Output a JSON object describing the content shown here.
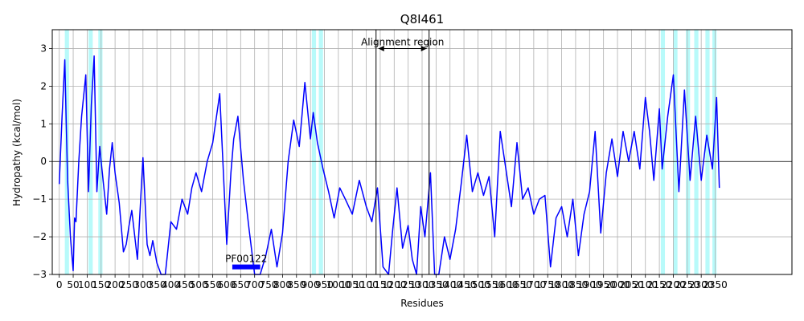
{
  "chart_data": {
    "type": "line",
    "title": "Q8I461",
    "xlabel": "Residues",
    "ylabel": "Hydropathy (kcal/mol)",
    "xlim": [
      -25,
      2625
    ],
    "ylim": [
      -3,
      3.5
    ],
    "x_ticks": [
      0,
      50,
      100,
      150,
      200,
      250,
      300,
      350,
      400,
      450,
      500,
      550,
      600,
      650,
      700,
      750,
      800,
      850,
      900,
      950,
      1000,
      1050,
      1100,
      1150,
      1200,
      1250,
      1300,
      1350,
      1400,
      1450,
      1500,
      1550,
      1600,
      1650,
      1700,
      1750,
      1800,
      1850,
      1900,
      1950,
      2000,
      2050,
      2100,
      2150,
      2200,
      2250,
      2300,
      2350
    ],
    "x_tick_labels": [
      "0",
      "50",
      "100",
      "150",
      "200",
      "250",
      "300",
      "350",
      "400",
      "450",
      "500",
      "550",
      "600",
      "650",
      "700",
      "750",
      "800",
      "850",
      "900",
      "950",
      "1000",
      "1050",
      "1100",
      "1150",
      "1200",
      "1250",
      "1300",
      "1350",
      "1400",
      "1450",
      "1500",
      "1550",
      "1600",
      "1650",
      "1700",
      "1750",
      "1800",
      "1850",
      "1900",
      "1950",
      "2000",
      "2050",
      "2100",
      "2150",
      "2200",
      "2250",
      "2300",
      "2350"
    ],
    "y_ticks": [
      -3,
      -2,
      -1,
      0,
      1,
      2,
      3
    ],
    "y_tick_labels": [
      "−3",
      "−2",
      "−1",
      "0",
      "1",
      "2",
      "3"
    ],
    "grid": true,
    "series": [
      {
        "color": "#0000ff",
        "x": [
          0,
          10,
          20,
          25,
          30,
          40,
          50,
          55,
          60,
          70,
          80,
          95,
          105,
          115,
          125,
          135,
          145,
          150,
          160,
          170,
          180,
          190,
          200,
          215,
          230,
          240,
          250,
          260,
          280,
          300,
          315,
          325,
          335,
          350,
          365,
          380,
          400,
          420,
          440,
          460,
          475,
          490,
          510,
          530,
          550,
          575,
          600,
          615,
          625,
          640,
          660,
          680,
          700,
          720,
          740,
          760,
          780,
          800,
          820,
          840,
          860,
          880,
          900,
          910,
          925,
          945,
          965,
          985,
          1005,
          1025,
          1050,
          1075,
          1100,
          1120,
          1140,
          1160,
          1180,
          1195,
          1210,
          1230,
          1250,
          1265,
          1280,
          1295,
          1310,
          1330,
          1345,
          1360,
          1380,
          1400,
          1420,
          1440,
          1460,
          1480,
          1500,
          1520,
          1540,
          1560,
          1580,
          1600,
          1620,
          1640,
          1660,
          1680,
          1700,
          1720,
          1740,
          1760,
          1780,
          1800,
          1820,
          1840,
          1860,
          1880,
          1900,
          1920,
          1940,
          1960,
          1980,
          2000,
          2020,
          2040,
          2060,
          2080,
          2100,
          2115,
          2130,
          2150,
          2160,
          2180,
          2200,
          2220,
          2240,
          2260,
          2280,
          2300,
          2320,
          2340,
          2355,
          2365
        ],
        "y": [
          -0.6,
          1.2,
          2.7,
          1.0,
          -0.5,
          -2.0,
          -2.9,
          -1.5,
          -1.6,
          0.0,
          1.2,
          2.3,
          -0.8,
          1.5,
          2.8,
          -0.8,
          0.4,
          0.0,
          -0.7,
          -1.4,
          -0.2,
          0.5,
          -0.3,
          -1.1,
          -2.4,
          -2.2,
          -1.7,
          -1.3,
          -2.6,
          0.1,
          -2.2,
          -2.5,
          -2.1,
          -2.7,
          -3.0,
          -3.0,
          -1.6,
          -1.8,
          -1.0,
          -1.4,
          -0.7,
          -0.3,
          -0.8,
          0.0,
          0.5,
          1.8,
          -2.2,
          -0.3,
          0.6,
          1.2,
          -0.5,
          -1.8,
          -3.0,
          -3.0,
          -2.5,
          -1.8,
          -2.8,
          -1.9,
          0.0,
          1.1,
          0.4,
          2.1,
          0.6,
          1.3,
          0.5,
          -0.2,
          -0.8,
          -1.5,
          -0.7,
          -1.0,
          -1.4,
          -0.5,
          -1.2,
          -1.6,
          -0.7,
          -2.8,
          -3.0,
          -1.8,
          -0.7,
          -2.3,
          -1.7,
          -2.6,
          -3.0,
          -1.2,
          -2.0,
          -0.3,
          -3.0,
          -3.0,
          -2.0,
          -2.6,
          -1.8,
          -0.6,
          0.7,
          -0.8,
          -0.3,
          -0.9,
          -0.4,
          -2.0,
          0.8,
          -0.2,
          -1.2,
          0.5,
          -1.0,
          -0.7,
          -1.4,
          -1.0,
          -0.9,
          -2.8,
          -1.5,
          -1.2,
          -2.0,
          -1.0,
          -2.5,
          -1.4,
          -0.8,
          0.8,
          -1.9,
          -0.3,
          0.6,
          -0.4,
          0.8,
          0.0,
          0.8,
          -0.2,
          1.7,
          0.8,
          -0.5,
          1.4,
          -0.2,
          1.2,
          2.3,
          -0.8,
          1.9,
          -0.5,
          1.2,
          -0.5,
          0.7,
          -0.2,
          1.7,
          -0.7
        ]
      }
    ],
    "hydrophobic_regions": [
      [
        20,
        35
      ],
      [
        105,
        120
      ],
      [
        140,
        155
      ],
      [
        905,
        920
      ],
      [
        930,
        945
      ],
      [
        2155,
        2170
      ],
      [
        2200,
        2215
      ],
      [
        2245,
        2260
      ],
      [
        2275,
        2290
      ],
      [
        2315,
        2330
      ],
      [
        2340,
        2355
      ]
    ],
    "alignment_region": {
      "label": "Alignment region",
      "start": 1135,
      "end": 1325
    },
    "domain": {
      "label": "PF00122",
      "start": 620,
      "end": 720,
      "y": -2.8
    }
  }
}
